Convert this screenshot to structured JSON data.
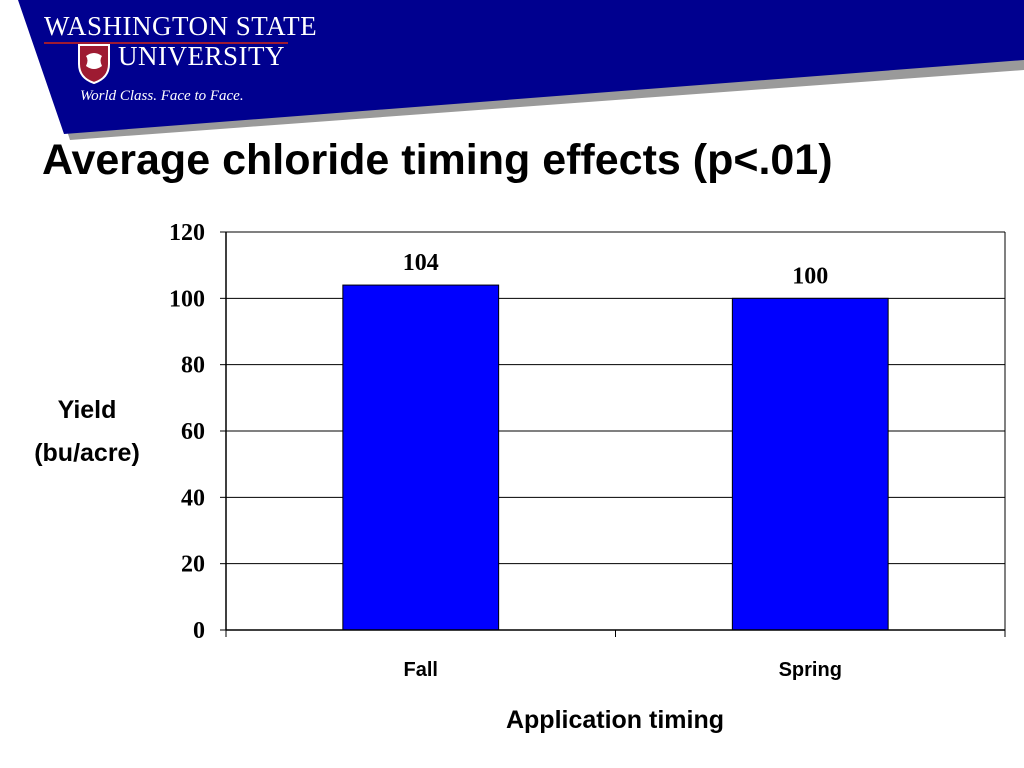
{
  "header": {
    "logo_line1": "WASHINGTON STATE",
    "logo_line2": "UNIVERSITY",
    "tagline": "World Class. Face to Face.",
    "banner_color": "#00008f",
    "accent_color": "#9e1b32",
    "logo_icon": "cougar-shield-icon"
  },
  "slide": {
    "title": "Average chloride timing effects (p<.01)"
  },
  "chart_data": {
    "type": "bar",
    "categories": [
      "Fall",
      "Spring"
    ],
    "values": [
      104,
      100
    ],
    "data_labels": [
      "104",
      "100"
    ],
    "xlabel": "Application timing",
    "ylabel_lines": [
      "Yield",
      "(bu/acre)"
    ],
    "ylim": [
      0,
      120
    ],
    "yticks": [
      0,
      20,
      40,
      60,
      80,
      100,
      120
    ],
    "grid": true,
    "bar_color": "#0000ff"
  }
}
